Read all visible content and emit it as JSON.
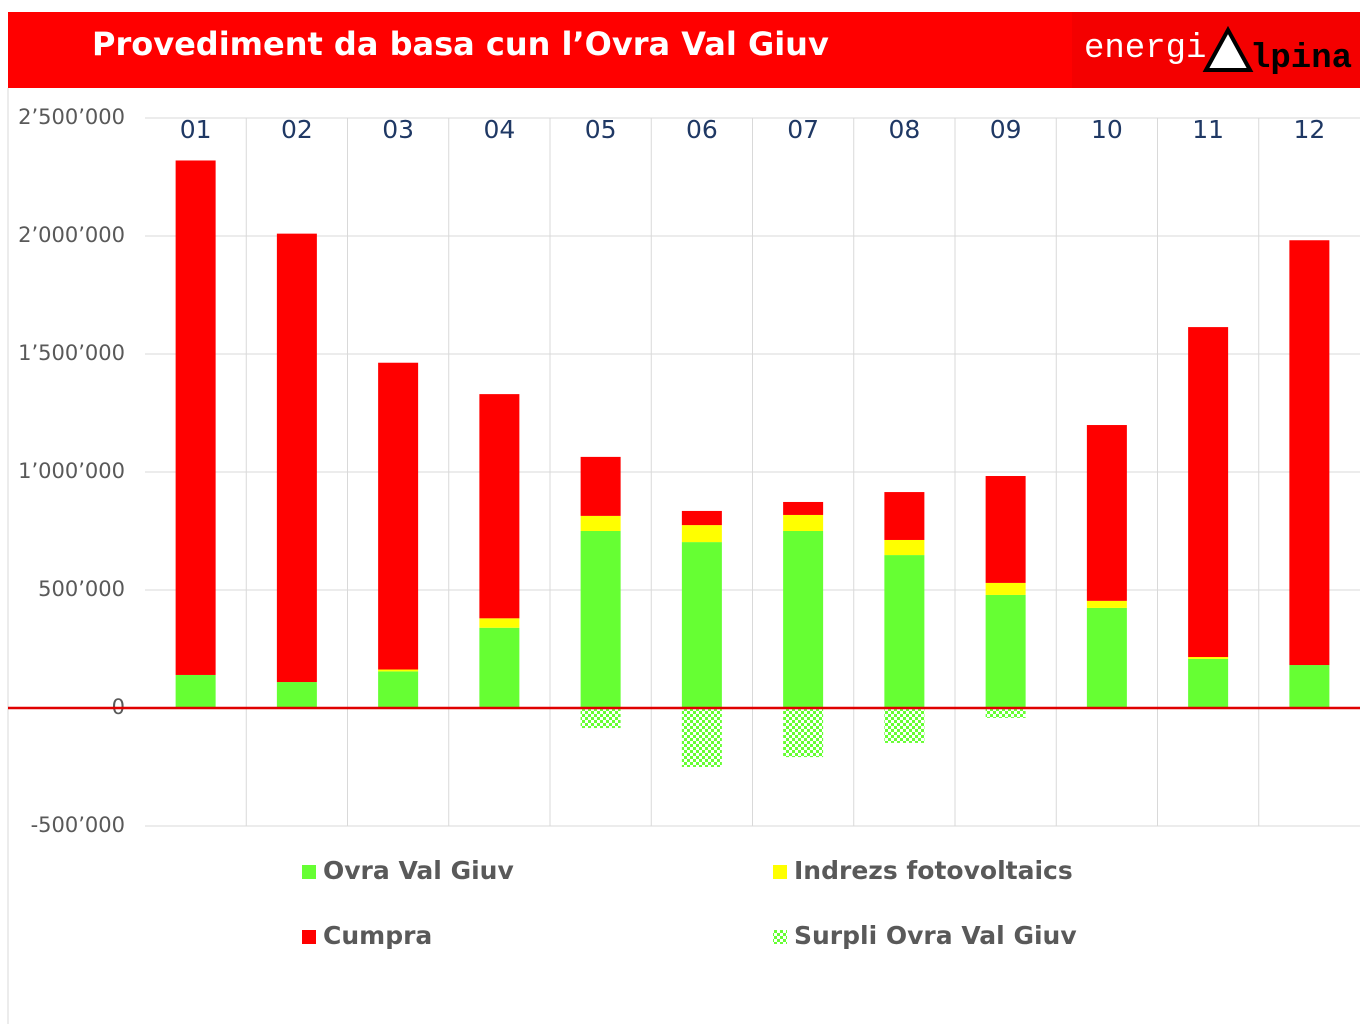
{
  "header": {
    "logo_left": "energi",
    "logo_right": "lpina"
  },
  "chart_data": {
    "type": "bar",
    "stacked": true,
    "title": "Provediment da basa cun l’Ovra Val Giuv",
    "categories": [
      "01",
      "02",
      "03",
      "04",
      "05",
      "06",
      "07",
      "08",
      "09",
      "10",
      "11",
      "12"
    ],
    "series": [
      {
        "name": "Ovra Val Giuv",
        "color": "#66ff33",
        "values": [
          140000,
          110000,
          155000,
          340000,
          750000,
          703000,
          750000,
          648000,
          479000,
          424000,
          208000,
          182000
        ]
      },
      {
        "name": "Indrezs fotovoltaics",
        "color": "#ffff00",
        "values": [
          0,
          0,
          8000,
          40000,
          64000,
          72000,
          68000,
          64000,
          51000,
          30000,
          8000,
          0
        ]
      },
      {
        "name": "Cumpra",
        "color": "#ff0000",
        "values": [
          2180000,
          1900000,
          1300000,
          950000,
          250000,
          60000,
          55000,
          203000,
          453000,
          745000,
          1398000,
          1800000
        ]
      },
      {
        "name": "Surpli Ovra Val Giuv",
        "color": "#66ff33",
        "pattern": "checkerboard",
        "values": [
          0,
          0,
          0,
          0,
          -85000,
          -250000,
          -208000,
          -148000,
          -42000,
          0,
          0,
          0
        ]
      }
    ],
    "ylim": [
      -500000,
      2500000
    ],
    "yticks": [
      {
        "value": -500000,
        "label": "-500’000"
      },
      0,
      {
        "value": 500000,
        "label": "500’000"
      },
      {
        "value": 1000000,
        "label": "1’000’000"
      },
      {
        "value": 1500000,
        "label": "1’500’000"
      },
      {
        "value": 2000000,
        "label": "2’000’000"
      },
      {
        "value": 2500000,
        "label": "2’500’000"
      }
    ],
    "grid": true,
    "zero_line_color": "#e00000",
    "legend": "bottom"
  }
}
